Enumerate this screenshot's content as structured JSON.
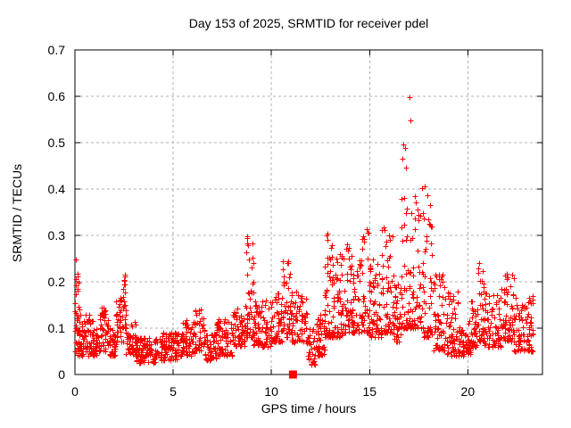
{
  "chart_data": {
    "type": "scatter",
    "title": "Day 153 of 2025, SRMTID for receiver pdel",
    "xlabel": "GPS time / hours",
    "ylabel": "SRMTID / TECUs",
    "xlim": [
      0,
      23.8
    ],
    "ylim": [
      0,
      0.7
    ],
    "xticks": [
      0,
      5,
      10,
      15,
      20
    ],
    "yticks": [
      0,
      0.1,
      0.2,
      0.3,
      0.4,
      0.5,
      0.6,
      0.7
    ],
    "xtick_labels": [
      "0",
      "5",
      "10",
      "15",
      "20"
    ],
    "ytick_labels": [
      "0",
      "0.1",
      "0.2",
      "0.3",
      "0.4",
      "0.5",
      "0.6",
      "0.7"
    ],
    "grid": true,
    "grid_style": "dashed",
    "legend": null,
    "marker": {
      "shape": "plus",
      "color": "#ff0000",
      "size": 7
    },
    "colors": {
      "marker": "#ff0000",
      "grid": "#b0b0b0",
      "axis": "#000000",
      "background": "#ffffff"
    },
    "special_points": [
      {
        "x": 11.1,
        "y": 0,
        "shape": "filled-square",
        "color": "#ff0000",
        "size": 9
      }
    ],
    "series_name": "SRMTID for receiver pdel",
    "point_count_estimate": 2200,
    "scatter_envelope_note": "dense scatter summarized as segments [x_start_hr, x_end_hr, y_min_TECU, y_max_TECU, n_points], bottom-weighted density",
    "scatter_envelope": [
      [
        0.0,
        0.25,
        0.05,
        0.25,
        40
      ],
      [
        0.1,
        0.9,
        0.04,
        0.13,
        75
      ],
      [
        0.9,
        1.2,
        0.04,
        0.1,
        30
      ],
      [
        1.2,
        1.7,
        0.05,
        0.15,
        50
      ],
      [
        1.7,
        2.1,
        0.04,
        0.1,
        40
      ],
      [
        2.1,
        2.45,
        0.07,
        0.17,
        35
      ],
      [
        2.45,
        2.6,
        0.1,
        0.24,
        25
      ],
      [
        2.6,
        3.1,
        0.04,
        0.12,
        45
      ],
      [
        3.1,
        4.2,
        0.025,
        0.08,
        105
      ],
      [
        4.2,
        5.3,
        0.03,
        0.09,
        105
      ],
      [
        5.3,
        6.1,
        0.04,
        0.12,
        70
      ],
      [
        6.1,
        6.6,
        0.05,
        0.14,
        45
      ],
      [
        6.6,
        7.2,
        0.03,
        0.09,
        50
      ],
      [
        7.2,
        8.0,
        0.04,
        0.12,
        70
      ],
      [
        8.0,
        8.7,
        0.06,
        0.15,
        60
      ],
      [
        8.7,
        9.1,
        0.08,
        0.31,
        45
      ],
      [
        9.1,
        10.0,
        0.06,
        0.16,
        80
      ],
      [
        10.0,
        10.55,
        0.07,
        0.18,
        50
      ],
      [
        10.55,
        10.95,
        0.08,
        0.25,
        40
      ],
      [
        10.95,
        11.8,
        0.07,
        0.18,
        75
      ],
      [
        11.8,
        12.25,
        0.02,
        0.1,
        35
      ],
      [
        12.25,
        12.7,
        0.04,
        0.13,
        50
      ],
      [
        12.7,
        13.15,
        0.08,
        0.31,
        60
      ],
      [
        13.15,
        13.7,
        0.08,
        0.26,
        55
      ],
      [
        13.7,
        14.3,
        0.09,
        0.29,
        60
      ],
      [
        14.3,
        15.0,
        0.09,
        0.33,
        65
      ],
      [
        15.0,
        15.6,
        0.08,
        0.26,
        55
      ],
      [
        15.6,
        16.2,
        0.09,
        0.33,
        55
      ],
      [
        16.2,
        16.6,
        0.07,
        0.2,
        40
      ],
      [
        16.6,
        17.1,
        0.1,
        0.61,
        60
      ],
      [
        17.1,
        17.75,
        0.1,
        0.44,
        55
      ],
      [
        17.75,
        18.2,
        0.08,
        0.41,
        45
      ],
      [
        18.2,
        18.9,
        0.05,
        0.22,
        60
      ],
      [
        18.9,
        19.5,
        0.04,
        0.18,
        55
      ],
      [
        19.5,
        20.15,
        0.04,
        0.12,
        55
      ],
      [
        20.15,
        20.5,
        0.06,
        0.16,
        35
      ],
      [
        20.5,
        20.85,
        0.07,
        0.25,
        35
      ],
      [
        20.85,
        21.7,
        0.06,
        0.18,
        70
      ],
      [
        21.7,
        22.35,
        0.07,
        0.22,
        60
      ],
      [
        22.35,
        23.35,
        0.05,
        0.17,
        85
      ]
    ]
  }
}
